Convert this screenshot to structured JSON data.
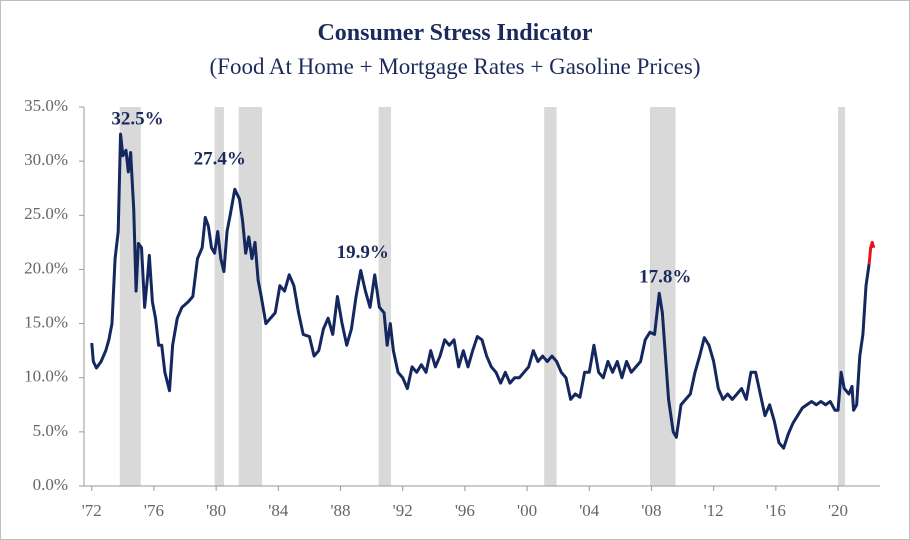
{
  "chart_data": {
    "type": "line",
    "title": "Consumer Stress Indicator",
    "subtitle": "(Food At Home + Mortgage Rates + Gasoline Prices)",
    "xlim": [
      1971.5,
      2022.7
    ],
    "ylim": [
      0,
      35
    ],
    "xticks": [
      {
        "value": 1972,
        "label": "'72"
      },
      {
        "value": 1976,
        "label": "'76"
      },
      {
        "value": 1980,
        "label": "'80"
      },
      {
        "value": 1984,
        "label": "'84"
      },
      {
        "value": 1988,
        "label": "'88"
      },
      {
        "value": 1992,
        "label": "'92"
      },
      {
        "value": 1996,
        "label": "'96"
      },
      {
        "value": 2000,
        "label": "'00"
      },
      {
        "value": 2004,
        "label": "'04"
      },
      {
        "value": 2008,
        "label": "'08"
      },
      {
        "value": 2012,
        "label": "'12"
      },
      {
        "value": 2016,
        "label": "'16"
      },
      {
        "value": 2020,
        "label": "'20"
      }
    ],
    "yticks": [
      {
        "value": 0,
        "label": "0.0%"
      },
      {
        "value": 5,
        "label": "5.0%"
      },
      {
        "value": 10,
        "label": "10.0%"
      },
      {
        "value": 15,
        "label": "15.0%"
      },
      {
        "value": 20,
        "label": "20.0%"
      },
      {
        "value": 25,
        "label": "25.0%"
      },
      {
        "value": 30,
        "label": "30.0%"
      },
      {
        "value": 35,
        "label": "35.0%"
      }
    ],
    "recessions": [
      [
        1973.8,
        1975.15
      ],
      [
        1979.9,
        1980.5
      ],
      [
        1981.45,
        1982.95
      ],
      [
        1990.45,
        1991.25
      ],
      [
        2001.1,
        2001.9
      ],
      [
        2007.9,
        2009.55
      ],
      [
        2020.0,
        2020.45
      ]
    ],
    "recession_color": "#d9d9d9",
    "annotations": [
      {
        "text": "32.5%",
        "x": 1973.85,
        "y": 32.5
      },
      {
        "text": "27.4%",
        "x": 1981.2,
        "y": 27.4
      },
      {
        "text": "19.9%",
        "x": 1989.3,
        "y": 19.9
      },
      {
        "text": "17.8%",
        "x": 2008.5,
        "y": 17.8
      }
    ],
    "series": [
      {
        "color": "#14275e",
        "x": [
          1972.0,
          1972.1,
          1972.3,
          1972.6,
          1972.9,
          1973.1,
          1973.3,
          1973.5,
          1973.7,
          1973.85,
          1974.0,
          1974.2,
          1974.35,
          1974.5,
          1974.7,
          1974.85,
          1975.0,
          1975.2,
          1975.4,
          1975.6,
          1975.7,
          1975.9,
          1976.1,
          1976.3,
          1976.5,
          1976.7,
          1977.0,
          1977.2,
          1977.5,
          1977.8,
          1978.2,
          1978.5,
          1978.8,
          1979.1,
          1979.3,
          1979.5,
          1979.7,
          1979.9,
          1980.1,
          1980.3,
          1980.5,
          1980.7,
          1980.9,
          1981.2,
          1981.5,
          1981.7,
          1981.9,
          1982.1,
          1982.3,
          1982.5,
          1982.7,
          1982.9,
          1983.2,
          1983.5,
          1983.8,
          1984.1,
          1984.4,
          1984.7,
          1985.0,
          1985.3,
          1985.6,
          1986.0,
          1986.3,
          1986.6,
          1986.9,
          1987.2,
          1987.5,
          1987.8,
          1988.1,
          1988.4,
          1988.7,
          1989.0,
          1989.3,
          1989.6,
          1989.9,
          1990.2,
          1990.5,
          1990.8,
          1991.0,
          1991.2,
          1991.4,
          1991.7,
          1992.0,
          1992.3,
          1992.6,
          1992.9,
          1993.2,
          1993.5,
          1993.8,
          1994.1,
          1994.4,
          1994.7,
          1995.0,
          1995.3,
          1995.6,
          1995.9,
          1996.2,
          1996.5,
          1996.8,
          1997.1,
          1997.4,
          1997.7,
          1998.0,
          1998.3,
          1998.6,
          1998.9,
          1999.2,
          1999.5,
          1999.8,
          2000.1,
          2000.4,
          2000.7,
          2001.0,
          2001.3,
          2001.6,
          2001.9,
          2002.2,
          2002.5,
          2002.8,
          2003.1,
          2003.4,
          2003.7,
          2004.0,
          2004.3,
          2004.6,
          2004.9,
          2005.2,
          2005.5,
          2005.8,
          2006.1,
          2006.4,
          2006.7,
          2007.0,
          2007.3,
          2007.6,
          2007.9,
          2008.2,
          2008.5,
          2008.7,
          2008.9,
          2009.1,
          2009.4,
          2009.6,
          2009.9,
          2010.2,
          2010.5,
          2010.8,
          2011.1,
          2011.4,
          2011.7,
          2012.0,
          2012.3,
          2012.6,
          2012.9,
          2013.2,
          2013.5,
          2013.8,
          2014.1,
          2014.4,
          2014.7,
          2015.0,
          2015.3,
          2015.6,
          2015.9,
          2016.2,
          2016.5,
          2016.8,
          2017.1,
          2017.4,
          2017.7,
          2018.0,
          2018.3,
          2018.6,
          2018.9,
          2019.2,
          2019.5,
          2019.8,
          2020.0,
          2020.2,
          2020.4,
          2020.7,
          2020.9,
          2021.0,
          2021.2,
          2021.4,
          2021.6,
          2021.8,
          2022.0
        ],
        "values": [
          13.2,
          11.5,
          10.9,
          11.5,
          12.5,
          13.5,
          15.0,
          21.0,
          23.5,
          32.5,
          30.5,
          31.0,
          29.0,
          30.8,
          25.5,
          18.0,
          22.4,
          22.0,
          16.5,
          19.5,
          21.3,
          17.0,
          15.5,
          13.0,
          13.0,
          10.5,
          8.8,
          13.0,
          15.5,
          16.5,
          17.0,
          17.5,
          21.0,
          22.0,
          24.8,
          24.0,
          22.0,
          21.5,
          23.5,
          21.0,
          19.8,
          23.5,
          25.0,
          27.4,
          26.5,
          24.5,
          21.5,
          23.0,
          21.0,
          22.5,
          19.0,
          17.5,
          15.0,
          15.5,
          16.0,
          18.5,
          18.0,
          19.5,
          18.5,
          16.0,
          14.0,
          13.8,
          12.0,
          12.5,
          14.5,
          15.5,
          14.0,
          17.5,
          15.0,
          13.0,
          14.5,
          17.5,
          19.9,
          18.0,
          16.5,
          19.5,
          16.5,
          16.0,
          13.0,
          15.0,
          12.5,
          10.5,
          10.0,
          9.0,
          11.0,
          10.5,
          11.2,
          10.5,
          12.5,
          11.0,
          12.0,
          13.5,
          13.0,
          13.5,
          11.0,
          12.5,
          11.0,
          12.5,
          13.8,
          13.5,
          12.0,
          11.0,
          10.5,
          9.5,
          10.5,
          9.5,
          10.0,
          10.0,
          10.5,
          11.0,
          12.5,
          11.5,
          12.0,
          11.5,
          12.0,
          11.5,
          10.5,
          10.0,
          8.0,
          8.5,
          8.2,
          10.5,
          10.5,
          13.0,
          10.5,
          10.0,
          11.5,
          10.5,
          11.5,
          10.0,
          11.5,
          10.5,
          11.0,
          11.5,
          13.5,
          14.2,
          14.0,
          17.8,
          16.0,
          12.0,
          8.0,
          5.0,
          4.5,
          7.5,
          8.0,
          8.5,
          10.5,
          12.0,
          13.7,
          13.0,
          11.5,
          9.0,
          8.0,
          8.5,
          8.0,
          8.5,
          9.0,
          8.0,
          10.5,
          10.5,
          8.5,
          6.5,
          7.5,
          6.0,
          4.0,
          3.5,
          4.8,
          5.8,
          6.5,
          7.2,
          7.5,
          7.8,
          7.5,
          7.8,
          7.5,
          7.8,
          7.0,
          7.0,
          10.5,
          9.0,
          8.5,
          9.2,
          7.0,
          7.5,
          12.0,
          14.0,
          18.5,
          20.5
        ]
      },
      {
        "color": "#e8141c",
        "x": [
          2022.0,
          2022.1,
          2022.2,
          2022.3
        ],
        "values": [
          20.5,
          22.0,
          22.5,
          22.0
        ]
      }
    ]
  }
}
